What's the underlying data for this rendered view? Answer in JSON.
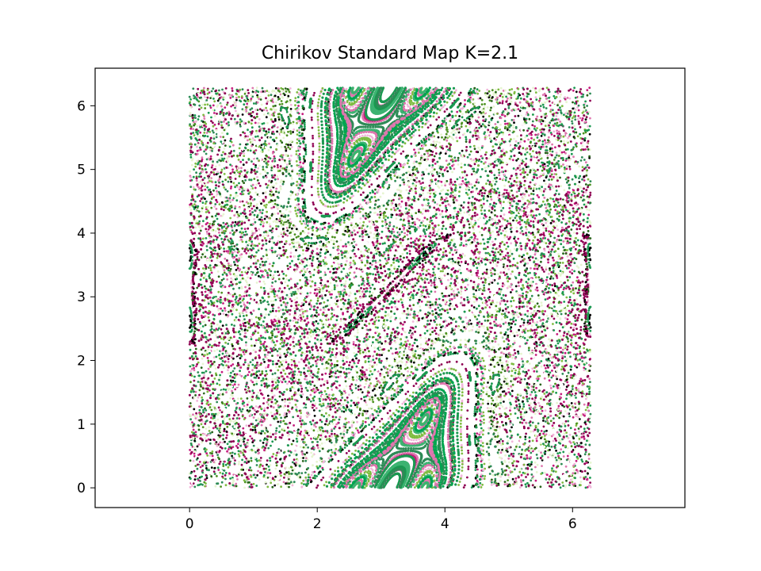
{
  "chart_data": {
    "type": "scatter",
    "title": "Chirikov Standard Map K=2.1",
    "K": 2.1,
    "xlabel": "",
    "ylabel": "",
    "xlim": [
      -1.48,
      7.76
    ],
    "ylim": [
      -0.31,
      6.59
    ],
    "x_ticks": [
      0,
      2,
      4,
      6
    ],
    "y_ticks": [
      0,
      1,
      2,
      3,
      4,
      5,
      6
    ],
    "x_tick_labels": [
      "0",
      "2",
      "4",
      "6"
    ],
    "y_tick_labels": [
      "0",
      "1",
      "2",
      "3",
      "4",
      "5",
      "6"
    ],
    "domain": {
      "x": [
        0,
        6.283
      ],
      "y": [
        0,
        6.283
      ]
    },
    "grid": false,
    "legend": "none",
    "colormap": [
      "#8e0152",
      "#c51b7d",
      "#de77ae",
      "#f1b6da",
      "#e6f5d0",
      "#7fbc41",
      "#4d9221",
      "#276419",
      "#1a9850",
      "#2e8b57",
      "#000000",
      "#ffffff"
    ],
    "regular_islands": [
      {
        "name": "lower island",
        "center": [
          3.14,
          0.3
        ],
        "color": "#1a9850"
      },
      {
        "name": "upper island",
        "center": [
          3.14,
          6.0
        ],
        "color": "#1a9850"
      },
      {
        "name": "central elongated island",
        "center": [
          3.05,
          3.1
        ],
        "color": "#8e0152"
      },
      {
        "name": "edge island",
        "center": [
          0.0,
          3.14
        ],
        "color": "#8e0152"
      }
    ]
  }
}
